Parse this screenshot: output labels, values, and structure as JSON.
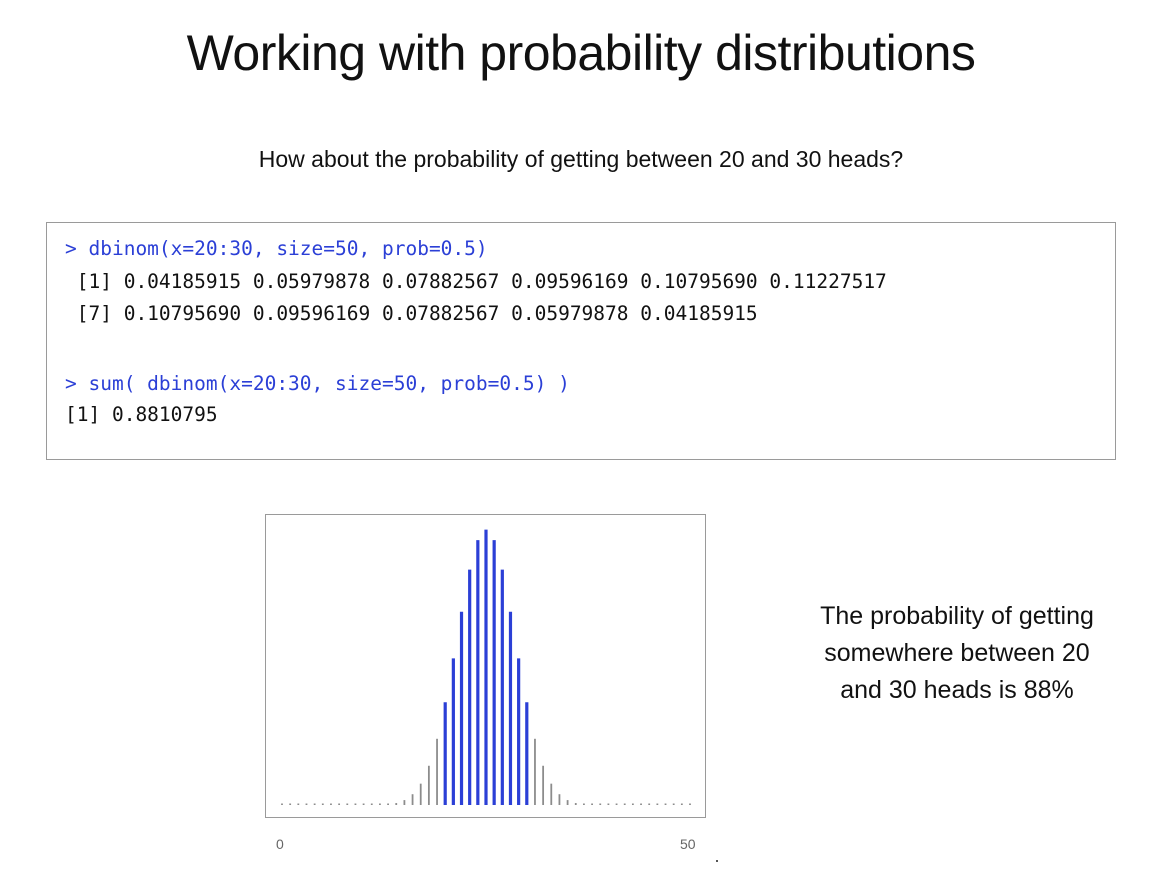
{
  "slide": {
    "title": "Working with probability distributions",
    "subtitle": "How about the probability of getting between 20 and 30 heads?",
    "caption_lines": [
      "The probability of getting",
      "somewhere between 20",
      "and 30 heads is 88%"
    ]
  },
  "console": {
    "lines": [
      {
        "text": "> dbinom(x=20:30, size=50, prob=0.5)",
        "kind": "cmd"
      },
      {
        "text": " [1] 0.04185915 0.05979878 0.07882567 0.09596169 0.10795690 0.11227517",
        "kind": "out"
      },
      {
        "text": " [7] 0.10795690 0.09596169 0.07882567 0.05979878 0.04185915",
        "kind": "out"
      },
      {
        "text": "> sum( dbinom(x=20:30, size=50, prob=0.5) )",
        "kind": "cmd"
      },
      {
        "text": "[1] 0.8810795",
        "kind": "out"
      }
    ]
  },
  "colors": {
    "highlight": "#2b3fd6",
    "base": "#8c8c8c",
    "command_text": "#2b3fd6"
  },
  "chart_data": {
    "type": "bar",
    "x": [
      0,
      1,
      2,
      3,
      4,
      5,
      6,
      7,
      8,
      9,
      10,
      11,
      12,
      13,
      14,
      15,
      16,
      17,
      18,
      19,
      20,
      21,
      22,
      23,
      24,
      25,
      26,
      27,
      28,
      29,
      30,
      31,
      32,
      33,
      34,
      35,
      36,
      37,
      38,
      39,
      40,
      41,
      42,
      43,
      44,
      45,
      46,
      47,
      48,
      49,
      50
    ],
    "values": [
      0,
      0,
      0,
      0,
      0,
      0,
      0,
      0,
      0,
      0,
      0.0,
      0.0,
      0.0001,
      0.0003,
      0.0008,
      0.002,
      0.0044,
      0.0087,
      0.016,
      0.027,
      0.0419,
      0.0598,
      0.0788,
      0.096,
      0.108,
      0.1123,
      0.108,
      0.096,
      0.0788,
      0.0598,
      0.0419,
      0.027,
      0.016,
      0.0087,
      0.0044,
      0.002,
      0.0008,
      0.0003,
      0.0001,
      0.0,
      0.0,
      0,
      0,
      0,
      0,
      0,
      0,
      0,
      0,
      0,
      0
    ],
    "highlight_range": [
      20,
      30
    ],
    "xlim": [
      0,
      50
    ],
    "ylim": [
      0,
      0.115
    ],
    "x_tick_labels": [
      "0",
      "50"
    ],
    "grid": false
  }
}
